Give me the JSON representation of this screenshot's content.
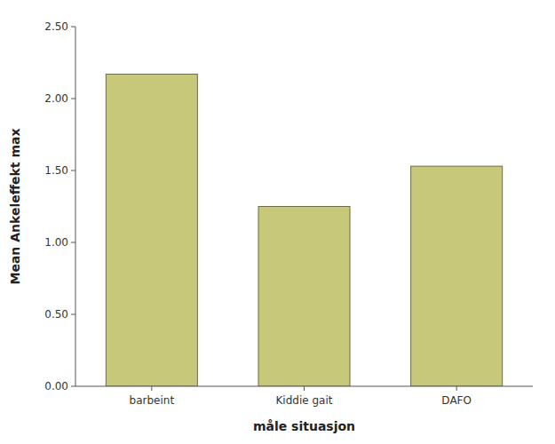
{
  "chart_data": {
    "type": "bar",
    "categories": [
      "barbeint",
      "Kiddie gait",
      "DAFO"
    ],
    "values": [
      2.17,
      1.25,
      1.53
    ],
    "color": "#c8c87a",
    "xlabel": "måle situasjon",
    "ylabel": "Mean Ankeleffekt max",
    "ylim": [
      0,
      2.5
    ],
    "yticks": [
      {
        "value": 0,
        "label": "0.00"
      },
      {
        "value": 0.5,
        "label": "0.50"
      },
      {
        "value": 1,
        "label": "1.00"
      },
      {
        "value": 1.5,
        "label": "1.50"
      },
      {
        "value": 2,
        "label": "2.00"
      },
      {
        "value": 2.5,
        "label": "2.50"
      }
    ],
    "grid": false
  }
}
